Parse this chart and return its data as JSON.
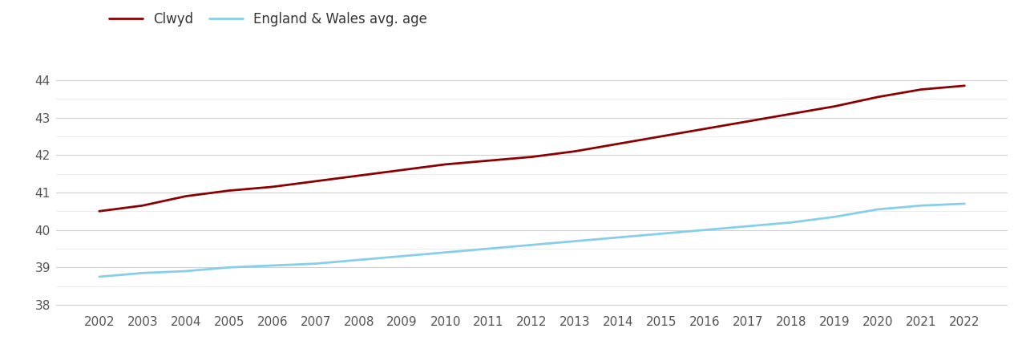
{
  "years": [
    2002,
    2003,
    2004,
    2005,
    2006,
    2007,
    2008,
    2009,
    2010,
    2011,
    2012,
    2013,
    2014,
    2015,
    2016,
    2017,
    2018,
    2019,
    2020,
    2021,
    2022
  ],
  "clwyd": [
    40.5,
    40.65,
    40.9,
    41.05,
    41.15,
    41.3,
    41.45,
    41.6,
    41.75,
    41.85,
    41.95,
    42.1,
    42.3,
    42.5,
    42.7,
    42.9,
    43.1,
    43.3,
    43.55,
    43.75,
    43.85
  ],
  "england_wales": [
    38.75,
    38.85,
    38.9,
    39.0,
    39.05,
    39.1,
    39.2,
    39.3,
    39.4,
    39.5,
    39.6,
    39.7,
    39.8,
    39.9,
    40.0,
    40.1,
    40.2,
    40.35,
    40.55,
    40.65,
    40.7
  ],
  "clwyd_color": "#8B0000",
  "ew_color": "#87CEEB",
  "clwyd_label": "Clwyd",
  "ew_label": "England & Wales avg. age",
  "ylim": [
    37.85,
    44.5
  ],
  "yticks": [
    38,
    39,
    40,
    41,
    42,
    43,
    44
  ],
  "minor_yticks": [
    38.5,
    39.5,
    40.5,
    41.5,
    42.5,
    43.5
  ],
  "grid_color": "#d0d0d0",
  "minor_grid_color": "#e8e8e8",
  "background_color": "#ffffff",
  "line_width": 2.0,
  "legend_fontsize": 12,
  "tick_fontsize": 11,
  "tick_color": "#555555"
}
